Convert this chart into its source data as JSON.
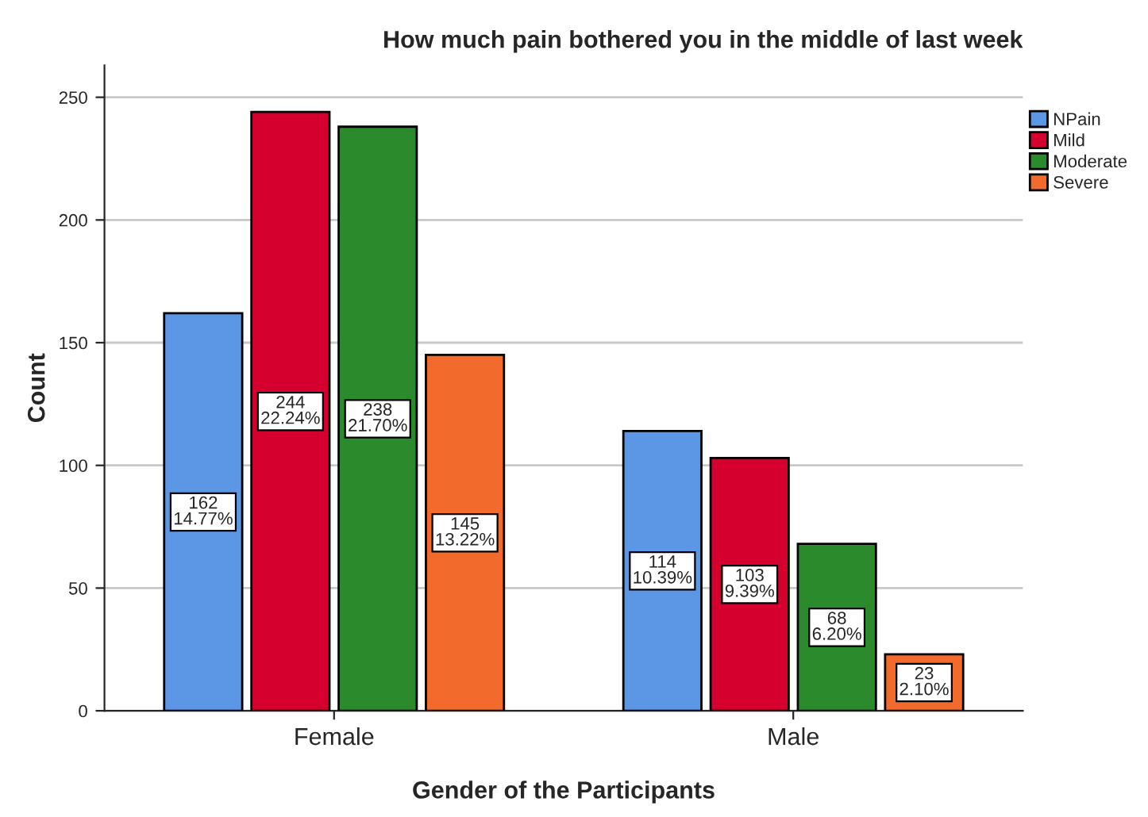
{
  "chart_data": {
    "type": "bar",
    "title": "How much pain bothered you in the middle of last week",
    "xlabel": "Gender of the Participants",
    "ylabel": "Count",
    "categories": [
      "Female",
      "Male"
    ],
    "series": [
      {
        "name": "NPain",
        "color": "#5b97e5",
        "values": [
          162,
          114
        ],
        "value_labels": [
          "162\n14.77%",
          "114\n10.39%"
        ]
      },
      {
        "name": "Mild",
        "color": "#d5002e",
        "values": [
          244,
          103
        ],
        "value_labels": [
          "244\n22.24%",
          "103\n9.39%"
        ]
      },
      {
        "name": "Moderate",
        "color": "#2b8a2b",
        "values": [
          238,
          68
        ],
        "value_labels": [
          "238\n21.70%",
          "68\n6.20%"
        ]
      },
      {
        "name": "Severe",
        "color": "#f36b2c",
        "values": [
          145,
          23
        ],
        "value_labels": [
          "145\n13.22%",
          "23\n2.10%"
        ]
      }
    ],
    "ylim": [
      0,
      263
    ],
    "yticks": [
      0,
      50,
      100,
      150,
      200,
      250
    ],
    "grid": "y",
    "legend": "top right"
  }
}
